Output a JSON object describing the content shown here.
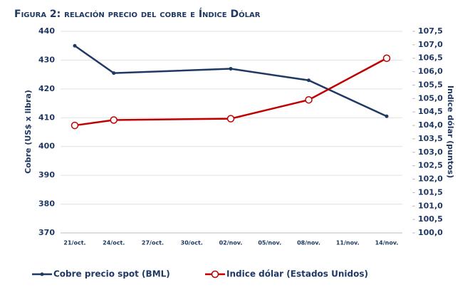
{
  "chart_data": {
    "type": "line",
    "title": "Figura 2: relación precio del cobre e Índice Dólar",
    "y_label": "Cobre (US$ x libra)",
    "y2_label": "Indice dólar (puntos)",
    "categories": [
      "21/oct.",
      "24/oct.",
      "27/oct.",
      "30/oct.",
      "02/nov.",
      "05/nov.",
      "08/nov.",
      "11/nov.",
      "14/nov."
    ],
    "x": [
      "21/oct.",
      "24/oct.",
      "02/nov.",
      "08/nov.",
      "14/nov."
    ],
    "series": [
      {
        "name": "Cobre precio spot (BML)",
        "color": "#1f3864",
        "values": [
          435,
          425.5,
          427,
          423,
          410.5
        ]
      },
      {
        "name": "Indice dólar (Estados Unidos)",
        "color": "#c00000",
        "axis": "y2",
        "values": [
          104.0,
          104.2,
          104.25,
          104.95,
          106.5
        ]
      }
    ],
    "ylim": [
      370,
      440
    ],
    "yticks": [
      370,
      380,
      390,
      400,
      410,
      420,
      430,
      440
    ],
    "y2lim": [
      100,
      107.5
    ],
    "y2ticks": [
      {
        "value": 100,
        "label": "100,0"
      },
      {
        "value": 100.5,
        "label": "100,5"
      },
      {
        "value": 101,
        "label": "101,0"
      },
      {
        "value": 101.5,
        "label": "101,5"
      },
      {
        "value": 102,
        "label": "102,0"
      },
      {
        "value": 102.5,
        "label": "102,5"
      },
      {
        "value": 103,
        "label": "103,0"
      },
      {
        "value": 103.5,
        "label": "103,5"
      },
      {
        "value": 104,
        "label": "104,0"
      },
      {
        "value": 104.5,
        "label": "104,5"
      },
      {
        "value": 105,
        "label": "105,0"
      },
      {
        "value": 105.5,
        "label": "105,5"
      },
      {
        "value": 106,
        "label": "106,0"
      },
      {
        "value": 106.5,
        "label": "106,5"
      },
      {
        "value": 107,
        "label": "107,0"
      },
      {
        "value": 107.5,
        "label": "107,5"
      }
    ],
    "grid": true
  }
}
